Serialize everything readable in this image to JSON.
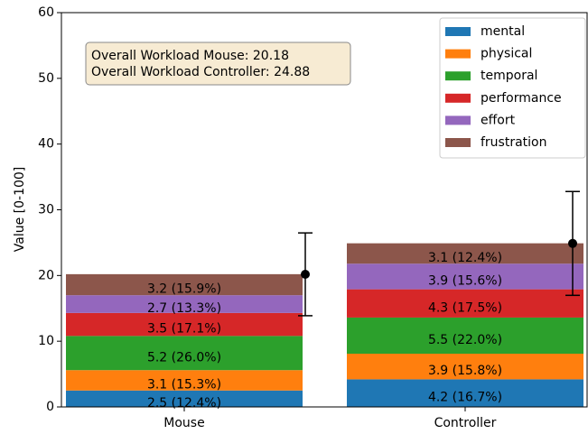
{
  "chart_data": {
    "type": "stacked_bar",
    "ylabel": "Value [0-100]",
    "categories": [
      "Mouse",
      "Controller"
    ],
    "series": [
      {
        "name": "mental",
        "color": "#1f77b4",
        "values": [
          2.5,
          4.2
        ],
        "value_labels": [
          "2.5 (12.4%)",
          "4.2 (16.7%)"
        ]
      },
      {
        "name": "physical",
        "color": "#ff7f0e",
        "values": [
          3.1,
          3.9
        ],
        "value_labels": [
          "3.1 (15.3%)",
          "3.9 (15.8%)"
        ]
      },
      {
        "name": "temporal",
        "color": "#2ca02c",
        "values": [
          5.2,
          5.5
        ],
        "value_labels": [
          "5.2 (26.0%)",
          "5.5 (22.0%)"
        ]
      },
      {
        "name": "performance",
        "color": "#d62728",
        "values": [
          3.5,
          4.3
        ],
        "value_labels": [
          "3.5 (17.1%)",
          "4.3 (17.5%)"
        ]
      },
      {
        "name": "effort",
        "color": "#9467bd",
        "values": [
          2.7,
          3.9
        ],
        "value_labels": [
          "2.7 (13.3%)",
          "3.9 (15.6%)"
        ]
      },
      {
        "name": "frustration",
        "color": "#8c564b",
        "values": [
          3.2,
          3.1
        ],
        "value_labels": [
          "3.2 (15.9%)",
          "3.1 (12.4%)"
        ]
      }
    ],
    "errorbars": {
      "values": [
        20.18,
        24.88
      ],
      "errors": [
        6.3,
        7.9
      ],
      "color": "#000000"
    },
    "annotation": [
      "Overall Workload Mouse: 20.18",
      "Overall Workload Controller: 24.88"
    ],
    "ylim": [
      0,
      60
    ],
    "yticks": [
      0,
      10,
      20,
      30,
      40,
      50,
      60
    ],
    "legend": "upper right"
  }
}
